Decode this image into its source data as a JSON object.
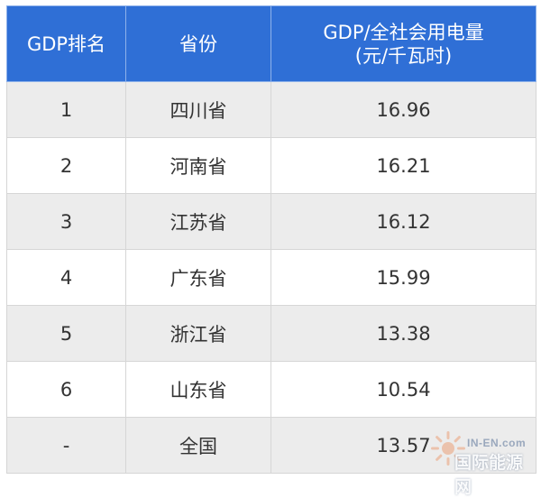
{
  "table": {
    "headers": {
      "rank": "GDP排名",
      "province": "省份",
      "ratio_line1": "GDP/全社会用电量",
      "ratio_line2": "(元/千瓦时)"
    },
    "rows": [
      {
        "rank": "1",
        "province": "四川省",
        "value": "16.96"
      },
      {
        "rank": "2",
        "province": "河南省",
        "value": "16.21"
      },
      {
        "rank": "3",
        "province": "江苏省",
        "value": "16.12"
      },
      {
        "rank": "4",
        "province": "广东省",
        "value": "15.99"
      },
      {
        "rank": "5",
        "province": "浙江省",
        "value": "13.38"
      },
      {
        "rank": "6",
        "province": "山东省",
        "value": "10.54"
      },
      {
        "rank": "-",
        "province": "全国",
        "value": "13.57"
      }
    ]
  },
  "colors": {
    "header_bg": "#2f6fd6",
    "header_text": "#ffffff",
    "row_alt_bg": "#ececec"
  },
  "watermark": {
    "en": "IN-EN.com",
    "cn": "国际能源网"
  }
}
